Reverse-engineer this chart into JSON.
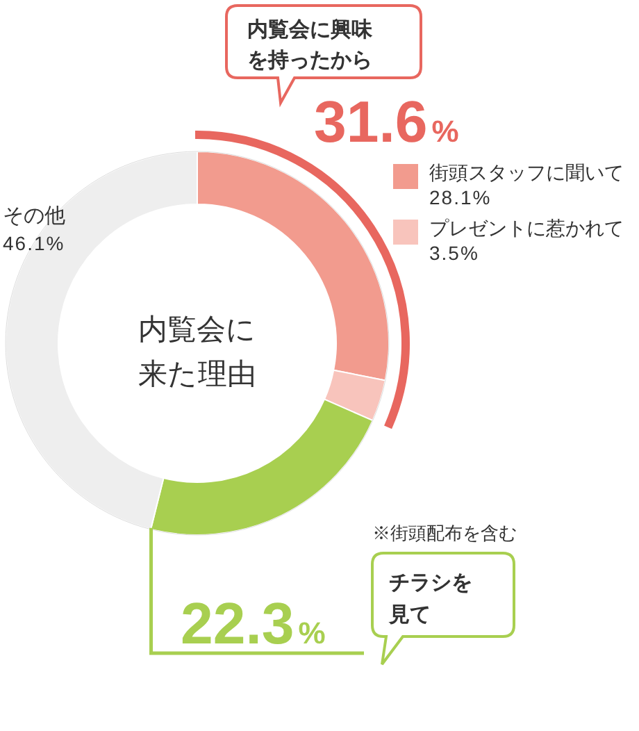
{
  "chart_data": {
    "type": "donut",
    "title": "内覧会に来た理由",
    "categories": [
      "街頭スタッフに聞いて",
      "プレゼントに惹かれて",
      "チラシを見て",
      "その他"
    ],
    "values": [
      28.1,
      3.5,
      22.3,
      46.1
    ],
    "value_labels": [
      "28.1%",
      "3.5%",
      "22.3%",
      "46.1%"
    ],
    "colors": [
      "#f29b8e",
      "#f8c4bc",
      "#a8cf50",
      "#eeeeee"
    ],
    "legend": "right",
    "annotations": [
      "内覧会に興味を持ったから",
      "31.6%",
      "※街頭配布を含む"
    ]
  }
}
